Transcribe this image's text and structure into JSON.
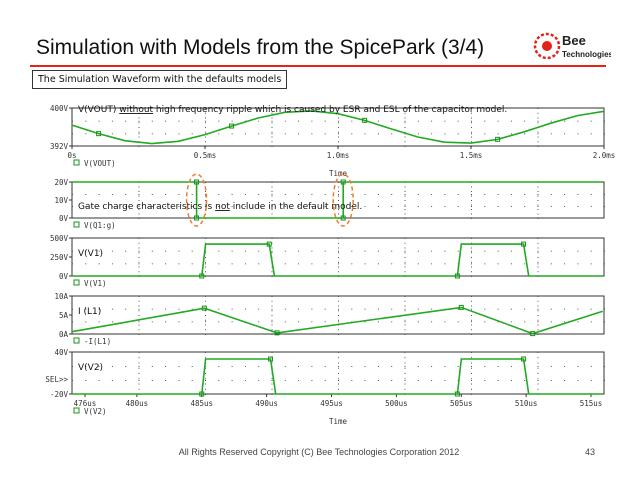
{
  "slide": {
    "title": "Simulation with Models from the SpicePark (3/4)",
    "subtitle": "The Simulation Waveform with the defaults models",
    "footer": "All Rights Reserved Copyright (C) Bee Technologies Corporation 2012",
    "page_number": "43",
    "logo_text_top": "Bee",
    "logo_text_bottom": "Technologies"
  },
  "colors": {
    "trace": "#22aa22",
    "trace_marker": "#1c8f1c",
    "frame": "#333333",
    "grid_dot": "#555555",
    "highlight_ellipse": "#f07a2a",
    "accent_red": "#e2231a"
  },
  "chart_data": [
    {
      "type": "line",
      "name": "vout-plot",
      "annotation": "V(VOUT) without high frequency ripple which is caused by ESR and ESL of the capacitor model.",
      "annotation_underlined_word": "without",
      "x_unit": "ms",
      "xlim": [
        0,
        2.0
      ],
      "ylim": [
        392,
        400
      ],
      "y_ticks": [
        392,
        400
      ],
      "y_tick_labels": [
        "392V",
        "400V"
      ],
      "x_ticks": [
        0,
        0.5,
        1.0,
        1.5,
        2.0
      ],
      "x_tick_labels": [
        "0s",
        "0.5ms",
        "1.0ms",
        "1.5ms",
        "2.0ms"
      ],
      "xlabel": "Time",
      "legend": "V(VOUT)",
      "series": [
        {
          "name": "V(VOUT)",
          "x": [
            0,
            0.1,
            0.2,
            0.3,
            0.4,
            0.5,
            0.6,
            0.7,
            0.8,
            0.9,
            1.0,
            1.1,
            1.2,
            1.3,
            1.4,
            1.5,
            1.6,
            1.7,
            1.8,
            1.9,
            2.0
          ],
          "y": [
            396.4,
            394.6,
            393.1,
            392.5,
            393.0,
            394.4,
            396.2,
            397.9,
            399.1,
            399.4,
            398.8,
            397.4,
            395.6,
            393.9,
            392.8,
            392.6,
            393.4,
            395.0,
            396.8,
            398.4,
            399.3
          ]
        }
      ]
    },
    {
      "type": "line",
      "name": "gate-plot",
      "annotation": "Gate charge characteristics is not include in the default model.",
      "annotation_underlined_word": "not",
      "x_unit": "us",
      "xlim": [
        475,
        516
      ],
      "ylim": [
        0,
        20
      ],
      "y_ticks": [
        0,
        10,
        20
      ],
      "y_tick_labels": [
        "0V",
        "10V",
        "20V"
      ],
      "legend": "V(Q1:g)",
      "series": [
        {
          "name": "V(Q1:g)",
          "x": [
            475,
            484.6,
            484.6,
            495.9,
            495.9,
            515.9
          ],
          "y": [
            20,
            20,
            0,
            0,
            20,
            20
          ]
        }
      ]
    },
    {
      "type": "line",
      "name": "v1-plot",
      "annotation": "V(V1)",
      "x_unit": "us",
      "xlim": [
        475,
        516
      ],
      "ylim": [
        0,
        500
      ],
      "y_ticks": [
        0,
        250,
        500
      ],
      "y_tick_labels": [
        "0V",
        "250V",
        "500V"
      ],
      "legend": "V(V1)",
      "series": [
        {
          "name": "V(V1)",
          "x": [
            475,
            485.0,
            485.3,
            490.2,
            490.6,
            504.7,
            505.0,
            509.8,
            510.2,
            515.9
          ],
          "y": [
            0,
            0,
            420,
            420,
            0,
            0,
            420,
            420,
            0,
            0
          ]
        }
      ]
    },
    {
      "type": "line",
      "name": "il1-plot",
      "annotation": "I (L1)",
      "x_unit": "us",
      "xlim": [
        475,
        516
      ],
      "ylim": [
        0,
        10
      ],
      "y_ticks": [
        0,
        5,
        10
      ],
      "y_tick_labels": [
        "0A",
        "5A",
        "10A"
      ],
      "legend": "-I(L1)",
      "series": [
        {
          "name": "-I(L1)",
          "x": [
            475,
            485.2,
            490.8,
            505.0,
            510.5,
            515.9
          ],
          "y": [
            0.6,
            6.8,
            0.3,
            7.0,
            0.1,
            6.0
          ]
        }
      ]
    },
    {
      "type": "line",
      "name": "v2-plot",
      "annotation": "V(V2)",
      "x_unit": "us",
      "xlim": [
        475,
        516
      ],
      "ylim": [
        -20,
        40
      ],
      "y_ticks": [
        -20,
        40
      ],
      "y_tick_labels": [
        "-20V",
        "40V"
      ],
      "sel_marker": "SEL>>",
      "x_ticks": [
        476,
        480,
        485,
        490,
        495,
        500,
        505,
        510,
        515
      ],
      "x_tick_labels": [
        "476us",
        "480us",
        "485us",
        "490us",
        "495us",
        "500us",
        "505us",
        "510us",
        "515us"
      ],
      "xlabel": "Time",
      "legend": "V(V2)",
      "series": [
        {
          "name": "V(V2)",
          "x": [
            475,
            485.0,
            485.3,
            490.3,
            490.7,
            504.7,
            505.0,
            509.8,
            510.2,
            515.9
          ],
          "y": [
            -20,
            -20,
            30,
            30,
            -20,
            -20,
            30,
            30,
            -20,
            -20
          ]
        }
      ]
    }
  ]
}
